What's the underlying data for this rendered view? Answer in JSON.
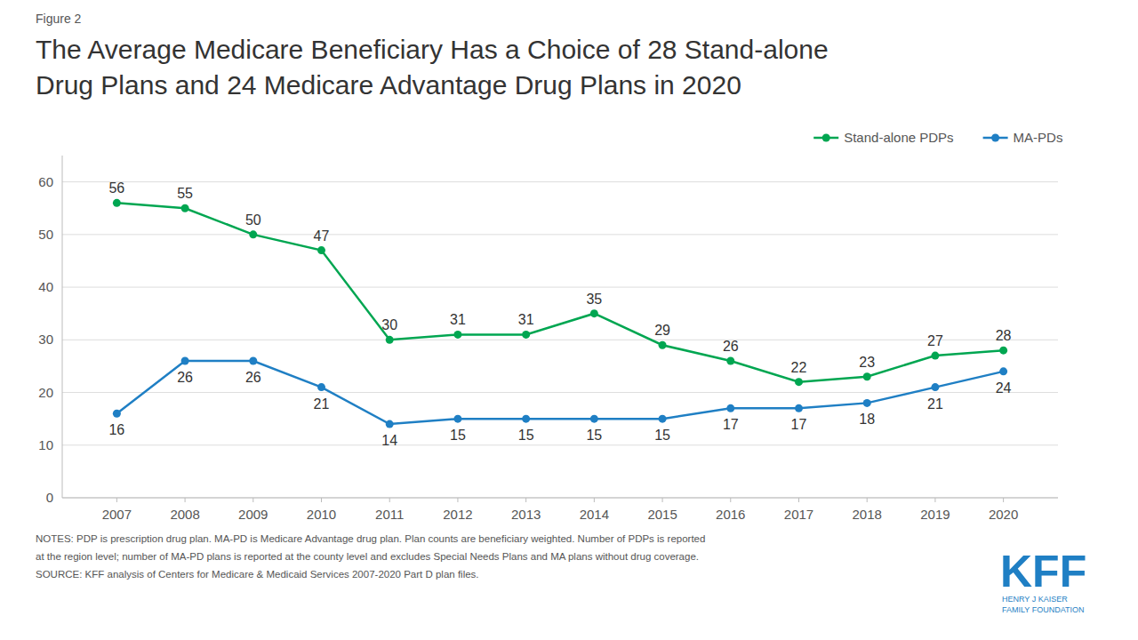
{
  "chart_data": {
    "type": "line",
    "title": [
      "The Average Medicare Beneficiary Has a Choice of 28 Stand-alone",
      "Drug Plans and 24 Medicare Advantage Drug Plans in 2020"
    ],
    "annotations": [
      "Figure 2",
      "NOTES:  PDP is prescription drug plan. MA-PD is Medicare Advantage drug plan. Plan counts are beneficiary weighted. Number of PDPs is reported",
      "at the region level;  number of MA-PD plans is reported at the county level and excludes Special Needs Plans and MA plans without drug coverage.",
      "SOURCE:  KFF analysis of Centers for Medicare & Medicaid Services 2007-2020 Part D plan files.",
      "KFF",
      "HENRY J KAISER",
      "FAMILY FOUNDATION"
    ],
    "x": [
      2007,
      2008,
      2009,
      2010,
      2011,
      2012,
      2013,
      2014,
      2015,
      2016,
      2017,
      2018,
      2019,
      2020
    ],
    "series": [
      {
        "name": "Stand-alone PDPs",
        "color": "#00a651",
        "marker": "circle",
        "line_style": "solid",
        "values": [
          56,
          55,
          50,
          47,
          30,
          31,
          31,
          35,
          29,
          26,
          22,
          23,
          27,
          28
        ]
      },
      {
        "name": "MA-PDs",
        "color": "#1f7fc4",
        "marker": "circle",
        "line_style": "solid",
        "values": [
          16,
          26,
          26,
          21,
          14,
          15,
          15,
          15,
          15,
          17,
          17,
          18,
          21,
          24
        ]
      }
    ],
    "xlim": [
      2006.2,
      2020.8
    ],
    "xticks": [
      2007,
      2008,
      2009,
      2010,
      2011,
      2012,
      2013,
      2014,
      2015,
      2016,
      2017,
      2018,
      2019,
      2020
    ],
    "ylim": [
      0,
      65
    ],
    "yticks": [
      0,
      10,
      20,
      30,
      40,
      50,
      60
    ],
    "grid": true,
    "legend": "upper right",
    "data_labels": true
  }
}
